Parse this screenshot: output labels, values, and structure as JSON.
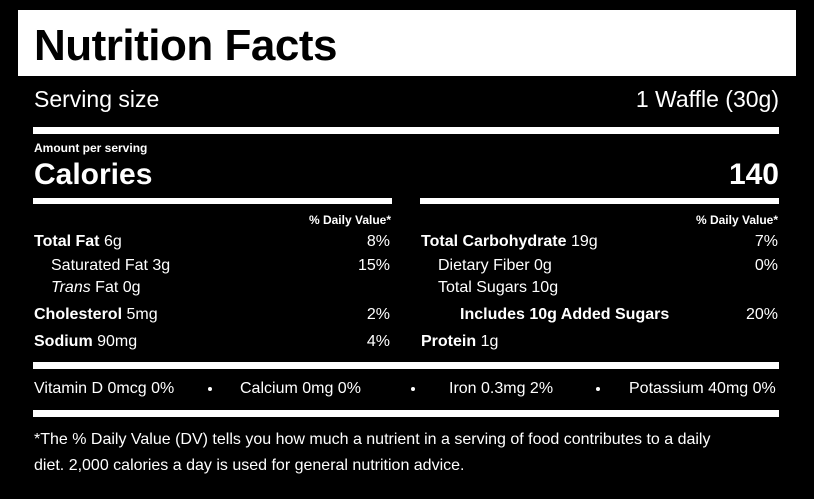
{
  "header": {
    "title": "Nutrition Facts"
  },
  "serving": {
    "label": "Serving size",
    "value": "1 Waffle (30g)"
  },
  "amount_per_serving": "Amount per serving",
  "calories": {
    "label": "Calories",
    "value": "140"
  },
  "daily_value_header": "% Daily Value*",
  "left_rows": [
    {
      "label": "Total Fat",
      "amount": "6g",
      "dv": "8%"
    },
    {
      "label": "Saturated Fat",
      "amount": "3g",
      "dv": "15%"
    },
    {
      "label_italic": "Trans",
      "label": "Fat",
      "amount": "0g"
    },
    {
      "label": "Cholesterol",
      "amount": "5mg",
      "dv": "2%"
    },
    {
      "label": "Sodium",
      "amount": "90mg",
      "dv": "4%"
    }
  ],
  "right_rows": [
    {
      "label": "Total Carbohydrate",
      "amount": "19g",
      "dv": "7%"
    },
    {
      "label": "Dietary Fiber",
      "amount": "0g",
      "dv": "0%"
    },
    {
      "label": "Total Sugars",
      "amount": "10g"
    },
    {
      "label": "Includes 10g Added Sugars",
      "dv": "20%"
    },
    {
      "label": "Protein",
      "amount": "1g"
    }
  ],
  "vitamins": [
    "Vitamin D 0mcg 0%",
    "Calcium 0mg 0%",
    "Iron 0.3mg 2%",
    "Potassium 40mg 0%"
  ],
  "footnote": {
    "lines": [
      "*The % Daily Value (DV) tells you how much a nutrient in a serving of food contributes to a daily",
      "diet. 2,000 calories a day is used for general nutrition advice."
    ]
  }
}
